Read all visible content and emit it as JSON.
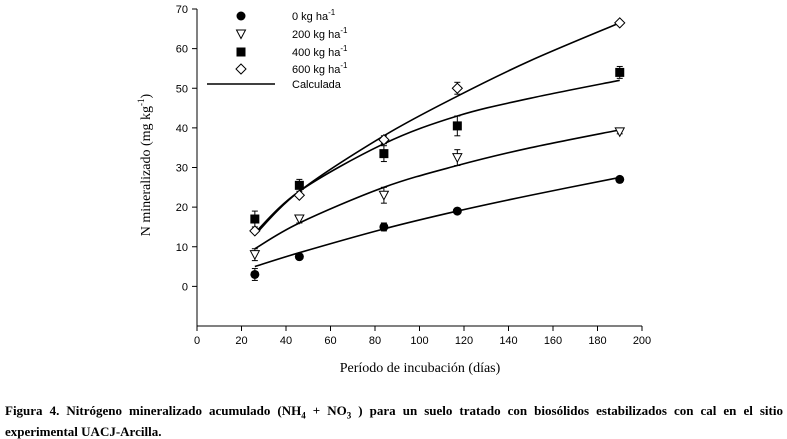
{
  "chart_data": {
    "type": "scatter",
    "title": "",
    "xlabel": "Período de incubación (días)",
    "ylabel_parts": [
      "N mineralizado (mg kg",
      "-1",
      ")"
    ],
    "xlim": [
      0,
      200
    ],
    "ylim": [
      -10,
      70
    ],
    "xticks": [
      0,
      20,
      40,
      60,
      80,
      100,
      120,
      140,
      160,
      180,
      200
    ],
    "yticks": [
      0,
      10,
      20,
      30,
      40,
      50,
      60,
      70
    ],
    "series": [
      {
        "name": "0 kg ha",
        "sup": "-1",
        "marker": "circle",
        "x": [
          26,
          46,
          84,
          117,
          190
        ],
        "values": [
          3,
          7.5,
          15,
          19,
          27
        ],
        "err": [
          1.5,
          0.5,
          1,
          0.5,
          0.5
        ]
      },
      {
        "name": "200 kg ha",
        "sup": "-1",
        "marker": "triangle-down-open",
        "x": [
          26,
          46,
          84,
          117,
          190
        ],
        "values": [
          8,
          17,
          23,
          32.5,
          39
        ],
        "err": [
          1.5,
          1,
          2,
          2,
          0.5
        ]
      },
      {
        "name": "400 kg ha",
        "sup": "-1",
        "marker": "square",
        "x": [
          26,
          46,
          84,
          117,
          190
        ],
        "values": [
          17,
          25.5,
          33.5,
          40.5,
          54
        ],
        "err": [
          2,
          1.5,
          2,
          2.5,
          1.5
        ]
      },
      {
        "name": "600 kg ha",
        "sup": "-1",
        "marker": "diamond-open",
        "x": [
          26,
          46,
          84,
          117,
          190
        ],
        "values": [
          14,
          23,
          37,
          50,
          66.5
        ],
        "err": [
          0.5,
          0.5,
          1,
          1.5,
          0.5
        ]
      }
    ],
    "fitted": {
      "name": "Calculada",
      "lines": [
        {
          "x": [
            26,
            46,
            84,
            117,
            150,
            190
          ],
          "values": [
            5,
            8.5,
            14.5,
            19,
            23,
            27.5
          ]
        },
        {
          "x": [
            26,
            46,
            84,
            117,
            150,
            190
          ],
          "values": [
            9.5,
            16,
            25,
            30.5,
            35,
            39.5
          ]
        },
        {
          "x": [
            26,
            46,
            84,
            117,
            150,
            190
          ],
          "values": [
            13.5,
            24,
            36,
            43,
            47.5,
            52
          ]
        },
        {
          "x": [
            26,
            46,
            84,
            117,
            150,
            190
          ],
          "values": [
            13,
            24,
            38,
            48,
            57,
            66.5
          ]
        }
      ]
    },
    "legend_position": "top-left"
  },
  "caption": {
    "prefix": "Figura 4. Nitrógeno mineralizado acumulado (NH",
    "sub1": "4",
    "mid": " + NO",
    "sub2": "3",
    "rest": " ) para un suelo tratado con biosólidos estabilizados con cal en el sitio experimental UACJ-Arcilla."
  }
}
